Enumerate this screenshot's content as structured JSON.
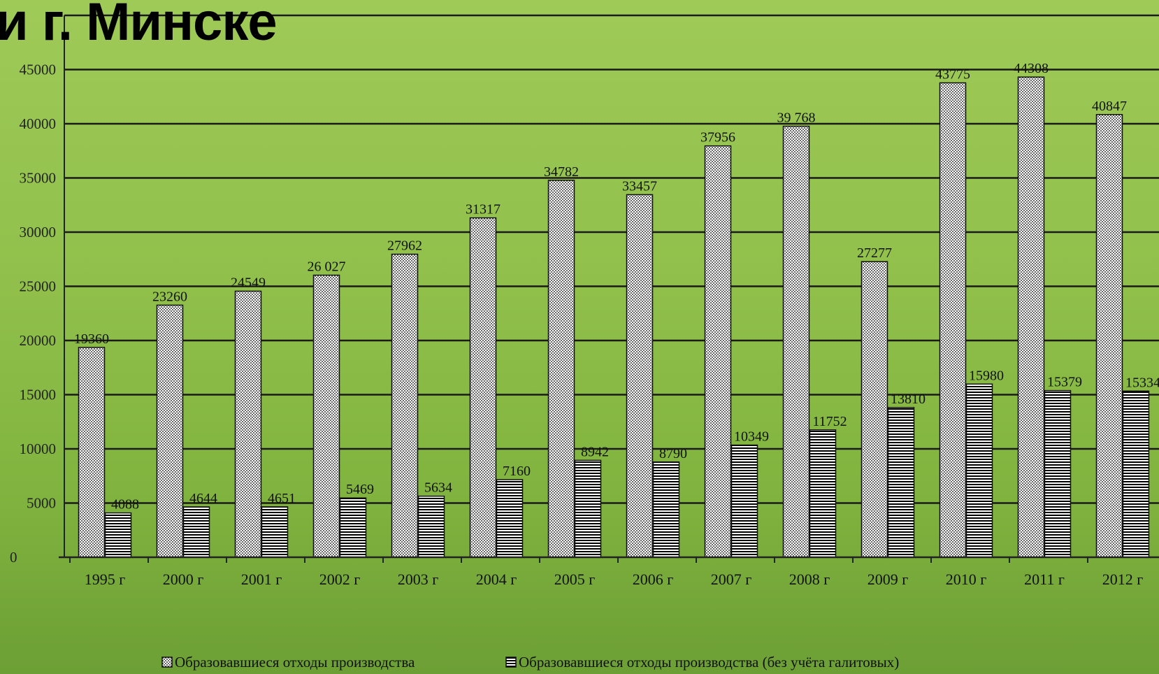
{
  "slide": {
    "title": "и г. Минске"
  },
  "colors": {
    "background_top": "#9fca58",
    "background_bottom": "#6c9f35",
    "gridline": "#1a1a1a",
    "bar_fill": "#ffffff",
    "bar_pattern": "#000000"
  },
  "chart_data": {
    "type": "bar",
    "title": "",
    "xlabel": "",
    "ylabel": "",
    "ylim": [
      0,
      50000
    ],
    "y_ticks": [
      0,
      5000,
      10000,
      15000,
      20000,
      25000,
      30000,
      35000,
      40000,
      45000
    ],
    "y_tick_labels": [
      "0",
      "5000",
      "10000",
      "15000",
      "20000",
      "25000",
      "30000",
      "35000",
      "40000",
      "45000"
    ],
    "grid": true,
    "legend_position": "bottom",
    "categories": [
      "1995 г",
      "2000 г",
      "2001 г",
      "2002 г",
      "2003 г",
      "2004 г",
      "2005 г",
      "2006 г",
      "2007 г",
      "2008 г",
      "2009 г",
      "2010 г",
      "2011 г",
      "2012 г"
    ],
    "series": [
      {
        "name": "Образовавшиеся отходы производства",
        "pattern": "dots",
        "values": [
          19360,
          23260,
          24549,
          26027,
          27962,
          31317,
          34782,
          33457,
          37956,
          39768,
          27277,
          43775,
          44308,
          40847
        ],
        "labels": [
          "19360",
          "23260",
          "24549",
          "26 027",
          "27962",
          "31317",
          "34782",
          "33457",
          "37956",
          "39 768",
          "27277",
          "43775",
          "44308",
          "40847"
        ]
      },
      {
        "name": "Образовавшиеся отходы производства (без учёта галитовых)",
        "pattern": "horizontal-lines",
        "values": [
          4088,
          4644,
          4651,
          5469,
          5634,
          7160,
          8942,
          8790,
          10349,
          11752,
          13810,
          15980,
          15379,
          15334
        ],
        "labels": [
          "4088",
          "4644",
          "4651",
          "5469",
          "5634",
          "7160",
          "8942",
          "8790",
          "10349",
          "11752",
          "13810",
          "15980",
          "15379",
          "15334"
        ]
      }
    ]
  }
}
